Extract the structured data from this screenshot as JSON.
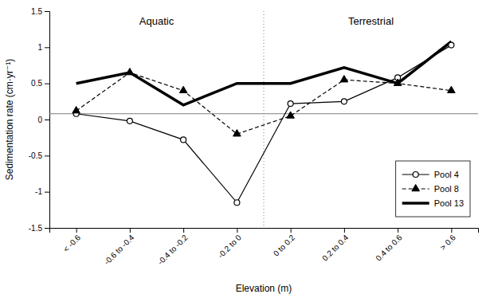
{
  "chart_data": {
    "type": "line",
    "xlabel": "Elevation (m)",
    "ylabel": "Sedimentation rate (cm·yr⁻¹)",
    "categories": [
      "< -0.6",
      "-0.6 to -0.4",
      "-0.4 to -0.2",
      "-0.2 to 0",
      "0 to 0.2",
      "0.2 to 0.4",
      "0.4 to 0.6",
      "> 0.6"
    ],
    "series": [
      {
        "name": "Pool 4",
        "color": "#000000",
        "marker": "circle",
        "line_style": "solid",
        "values": [
          0.08,
          -0.02,
          -0.28,
          -1.15,
          0.22,
          0.25,
          0.58,
          1.03
        ]
      },
      {
        "name": "Pool 8",
        "color": "#000000",
        "marker": "triangle",
        "line_style": "dashed",
        "values": [
          0.12,
          0.65,
          0.4,
          -0.2,
          0.05,
          0.55,
          0.5,
          0.4
        ]
      },
      {
        "name": "Pool 13",
        "color": "#000000",
        "marker": "none",
        "line_style": "thick",
        "values": [
          0.5,
          0.65,
          0.2,
          0.5,
          0.5,
          0.72,
          0.5,
          1.08
        ]
      }
    ],
    "ylim": [
      -1.5,
      1.5
    ],
    "yticks": [
      -1.5,
      -1,
      -0.5,
      0,
      0.5,
      1,
      1.5
    ],
    "hline": 0.08,
    "vline": 3.5,
    "annotations": [
      {
        "text": "Aquatic",
        "x": 1.5,
        "y": 1.42
      },
      {
        "text": "Terrestrial",
        "x": 5.5,
        "y": 1.42
      }
    ],
    "legend": "lower right",
    "grid": false
  }
}
